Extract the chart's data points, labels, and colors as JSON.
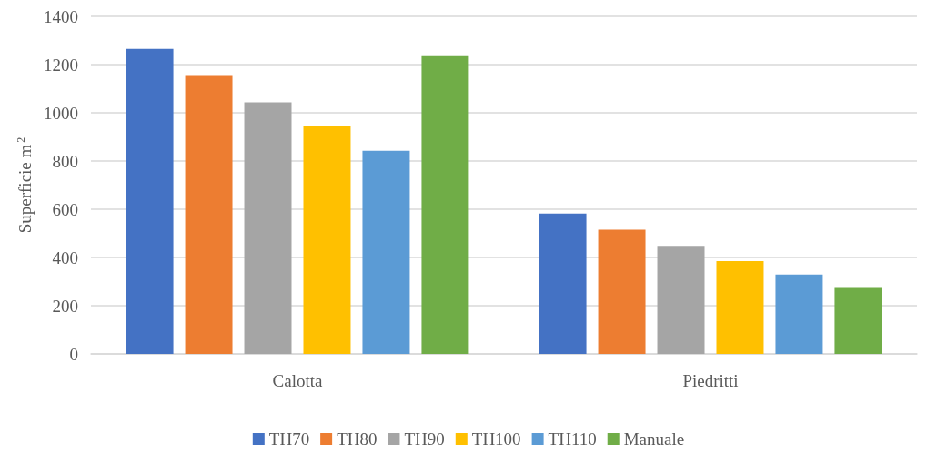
{
  "chart_data": {
    "type": "bar",
    "ylabel": "Superficie m$^{2}$",
    "categories": [
      "Calotta",
      "Piedritti"
    ],
    "series": [
      {
        "name": "TH70",
        "color": "#4472c4",
        "values": [
          1265,
          582
        ]
      },
      {
        "name": "TH80",
        "color": "#ed7d31",
        "values": [
          1157,
          515
        ]
      },
      {
        "name": "TH90",
        "color": "#a5a5a5",
        "values": [
          1043,
          448
        ]
      },
      {
        "name": "TH100",
        "color": "#ffc000",
        "values": [
          946,
          385
        ]
      },
      {
        "name": "TH110",
        "color": "#5b9bd5",
        "values": [
          842,
          329
        ]
      },
      {
        "name": "Manuale",
        "color": "#70ad47",
        "values": [
          1235,
          277
        ]
      }
    ],
    "ylim": [
      0,
      1400
    ],
    "yticks": [
      0,
      200,
      400,
      600,
      800,
      1000,
      1200,
      1400
    ],
    "grid": "y",
    "legend": "bottom"
  }
}
